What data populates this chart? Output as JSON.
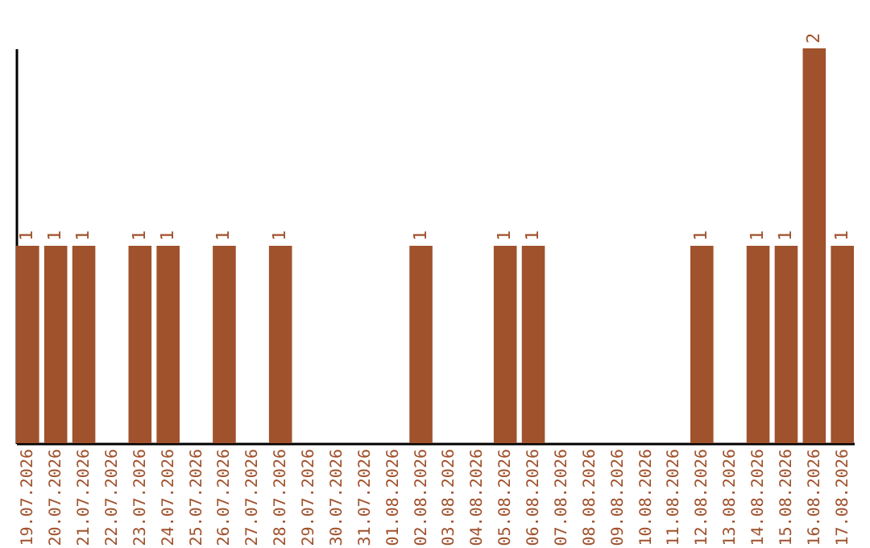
{
  "chart_data": {
    "type": "bar",
    "categories": [
      "19.07.2026",
      "20.07.2026",
      "21.07.2026",
      "22.07.2026",
      "23.07.2026",
      "24.07.2026",
      "25.07.2026",
      "26.07.2026",
      "27.07.2026",
      "28.07.2026",
      "29.07.2026",
      "30.07.2026",
      "31.07.2026",
      "01.08.2026",
      "02.08.2026",
      "03.08.2026",
      "04.08.2026",
      "05.08.2026",
      "06.08.2026",
      "07.08.2026",
      "08.08.2026",
      "09.08.2026",
      "10.08.2026",
      "11.08.2026",
      "12.08.2026",
      "13.08.2026",
      "14.08.2026",
      "15.08.2026",
      "16.08.2026",
      "17.08.2026"
    ],
    "values": [
      1,
      1,
      1,
      0,
      1,
      1,
      0,
      1,
      0,
      1,
      0,
      0,
      0,
      0,
      1,
      0,
      0,
      1,
      1,
      0,
      0,
      0,
      0,
      0,
      1,
      0,
      1,
      1,
      2,
      1
    ],
    "value_labels": [
      "1",
      "1",
      "1",
      null,
      "1",
      "1",
      null,
      "1",
      null,
      "1",
      null,
      null,
      null,
      null,
      "1",
      null,
      null,
      "1",
      "1",
      null,
      null,
      null,
      null,
      null,
      "1",
      null,
      "1",
      "1",
      "2",
      "1"
    ],
    "color": "#a0522d",
    "tick_labels": "x"
  }
}
